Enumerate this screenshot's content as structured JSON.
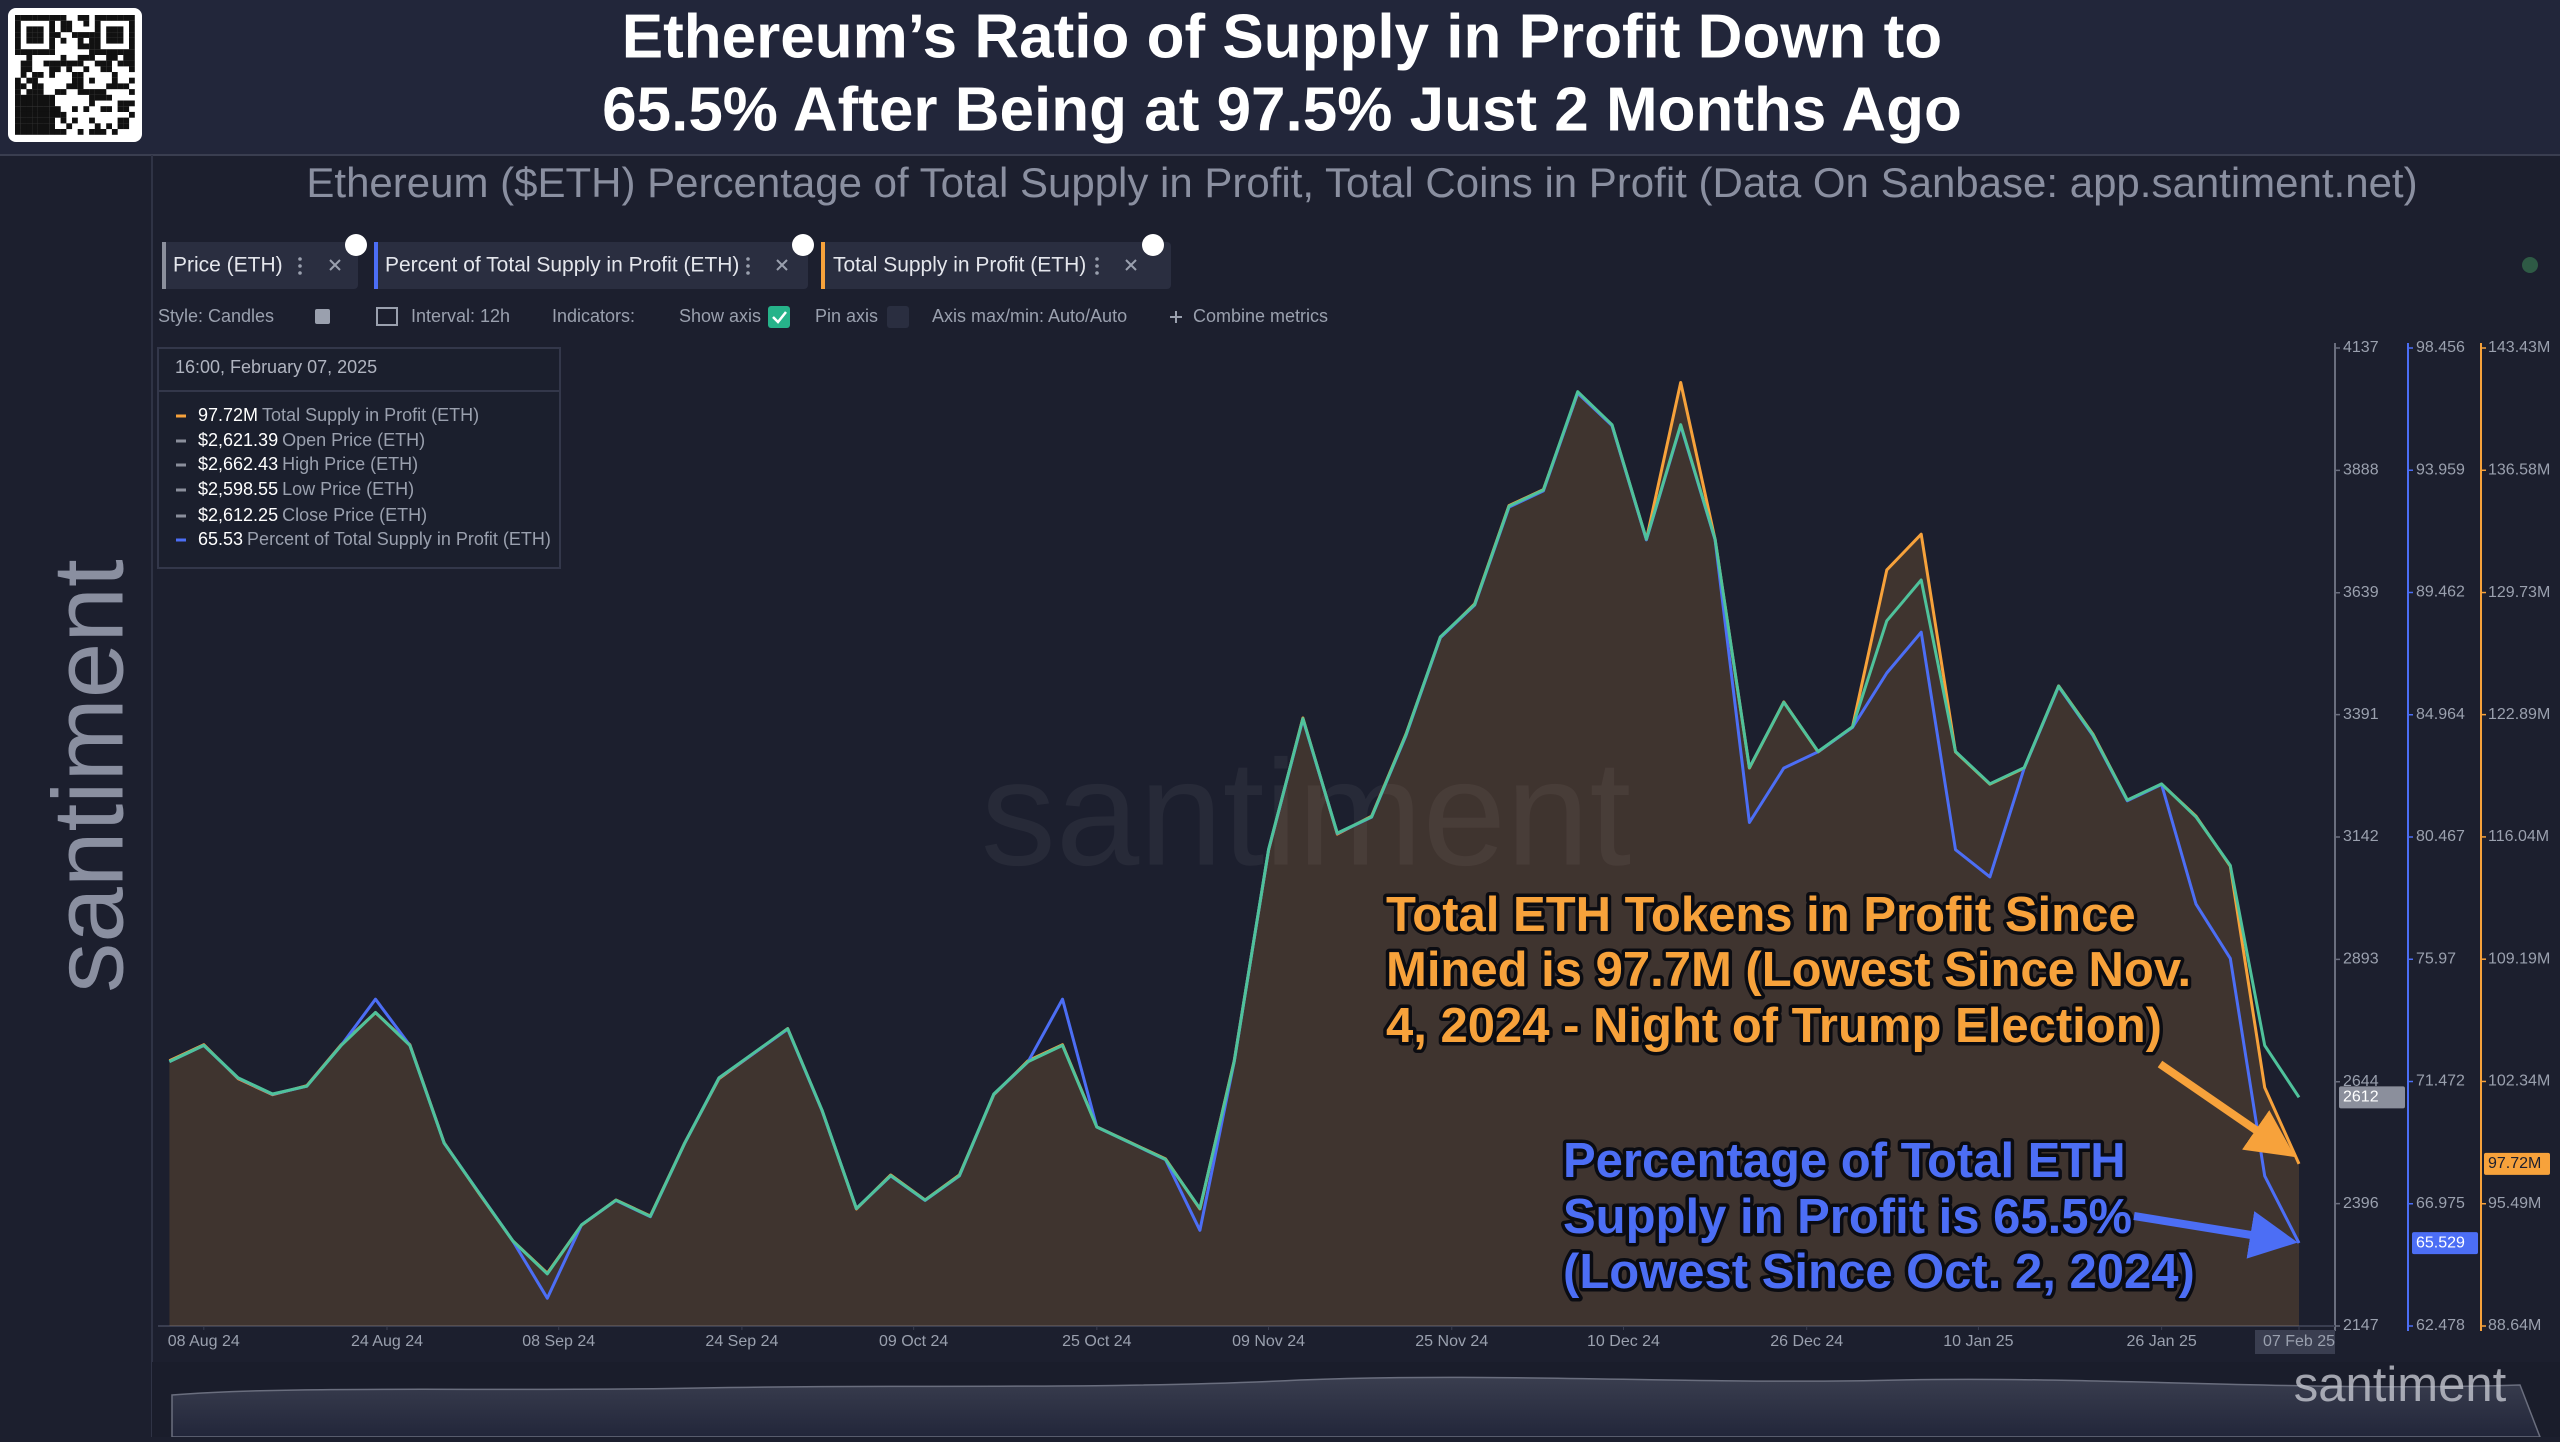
{
  "header": {
    "title_lines": [
      "Ethereum’s Ratio of Supply in Profit Down to",
      "65.5% After Being at 97.5% Just 2 Months Ago"
    ],
    "subtitle": "Ethereum ($ETH) Percentage of Total Supply in Profit, Total Coins in Profit (Data On Sanbase: app.santiment.net)"
  },
  "brand": {
    "side": "santiment",
    "watermark": "santiment",
    "footer": "santiment"
  },
  "tabs": [
    "Price (ETH)",
    "Percent of Total Supply in Profit (ETH)",
    "Total Supply in Profit (ETH)"
  ],
  "toolbar": [
    "Style: Candles",
    "Interval: 12h",
    "Indicators:",
    "Show axis",
    "Pin axis",
    "Axis max/min: Auto/Auto",
    "Combine metrics"
  ],
  "tooltip": {
    "date": "16:00, February 07, 2025",
    "rows": [
      [
        "97.72M",
        "Total Supply in Profit (ETH)"
      ],
      [
        "$2,621.39",
        "Open Price (ETH)"
      ],
      [
        "$2,662.43",
        "High Price (ETH)"
      ],
      [
        "$2,598.55",
        "Low Price (ETH)"
      ],
      [
        "$2,612.25",
        "Close Price (ETH)"
      ],
      [
        "65.53",
        "Percent of Total Supply in Profit (ETH)"
      ]
    ]
  },
  "annotations": [
    {
      "lines": [
        "Total ETH Tokens in Profit Since",
        "Mined is 97.7M (Lowest Since Nov.",
        "4, 2024 - Night of Trump Election)"
      ],
      "color": "#f7a23b"
    },
    {
      "lines": [
        "Percentage of Total ETH",
        "Supply in Profit is 65.5%",
        "(Lowest Since Oct. 2, 2024)"
      ],
      "color": "#4c6ef5"
    }
  ],
  "chart_data": {
    "type": "line",
    "grid": false,
    "x": [
      "2024-08-05",
      "2024-08-08",
      "2024-08-11",
      "2024-08-14",
      "2024-08-17",
      "2024-08-20",
      "2024-08-23",
      "2024-08-26",
      "2024-08-29",
      "2024-09-01",
      "2024-09-04",
      "2024-09-07",
      "2024-09-10",
      "2024-09-13",
      "2024-09-16",
      "2024-09-19",
      "2024-09-22",
      "2024-09-25",
      "2024-09-28",
      "2024-10-01",
      "2024-10-04",
      "2024-10-07",
      "2024-10-10",
      "2024-10-13",
      "2024-10-16",
      "2024-10-19",
      "2024-10-22",
      "2024-10-25",
      "2024-10-28",
      "2024-10-31",
      "2024-11-03",
      "2024-11-06",
      "2024-11-09",
      "2024-11-12",
      "2024-11-15",
      "2024-11-18",
      "2024-11-21",
      "2024-11-24",
      "2024-11-27",
      "2024-11-30",
      "2024-12-03",
      "2024-12-06",
      "2024-12-09",
      "2024-12-12",
      "2024-12-15",
      "2024-12-18",
      "2024-12-21",
      "2024-12-24",
      "2024-12-27",
      "2024-12-30",
      "2025-01-02",
      "2025-01-05",
      "2025-01-08",
      "2025-01-11",
      "2025-01-14",
      "2025-01-17",
      "2025-01-20",
      "2025-01-23",
      "2025-01-26",
      "2025-01-29",
      "2025-02-01",
      "2025-02-04",
      "2025-02-07"
    ],
    "xlim": [
      "2024-08-04",
      "2025-02-07"
    ],
    "xticks": [
      {
        "value": "2024-08-08",
        "label": "08 Aug 24"
      },
      {
        "value": "2024-08-24",
        "label": "24 Aug 24"
      },
      {
        "value": "2024-09-08",
        "label": "08 Sep 24"
      },
      {
        "value": "2024-09-24",
        "label": "24 Sep 24"
      },
      {
        "value": "2024-10-09",
        "label": "09 Oct 24"
      },
      {
        "value": "2024-10-25",
        "label": "25 Oct 24"
      },
      {
        "value": "2024-11-09",
        "label": "09 Nov 24"
      },
      {
        "value": "2024-11-25",
        "label": "25 Nov 24"
      },
      {
        "value": "2024-12-10",
        "label": "10 Dec 24"
      },
      {
        "value": "2024-12-26",
        "label": "26 Dec 24"
      },
      {
        "value": "2025-01-10",
        "label": "10 Jan 25"
      },
      {
        "value": "2025-01-26",
        "label": "26 Jan 25"
      },
      {
        "value": "2025-02-07",
        "label": "07 Feb 25"
      }
    ],
    "ylim": [
      2147,
      4137
    ],
    "yticks": [
      2147,
      2396,
      2644,
      2893,
      3142,
      3391,
      3639,
      3888,
      4137
    ],
    "y2lim": [
      62.478,
      98.456
    ],
    "y2ticks": [
      62.478,
      66.975,
      71.472,
      75.97,
      80.467,
      84.964,
      89.462,
      93.959,
      98.456
    ],
    "y3lim": [
      88.64,
      143.43
    ],
    "y3ticks": [
      {
        "value": 88.64,
        "label": "88.64M"
      },
      {
        "value": 95.49,
        "label": "95.49M"
      },
      {
        "value": 102.34,
        "label": "102.34M"
      },
      {
        "value": 109.19,
        "label": "109.19M"
      },
      {
        "value": 116.04,
        "label": "116.04M"
      },
      {
        "value": 122.89,
        "label": "122.89M"
      },
      {
        "value": 129.73,
        "label": "129.73M"
      },
      {
        "value": 136.58,
        "label": "136.58M"
      },
      {
        "value": 143.43,
        "label": "143.43M"
      }
    ],
    "series": [
      {
        "name": "Price (ETH)",
        "color": "#8b8f9c",
        "line_color": "#4fc29b",
        "axis": "y",
        "last_label": "2612",
        "values": [
          2685,
          2718,
          2652,
          2619,
          2635,
          2718,
          2785,
          2718,
          2519,
          2419,
          2320,
          2253,
          2353,
          2403,
          2370,
          2519,
          2652,
          2702,
          2752,
          2586,
          2386,
          2453,
          2403,
          2453,
          2619,
          2685,
          2718,
          2552,
          2519,
          2486,
          2386,
          2685,
          3117,
          3383,
          3150,
          3183,
          3350,
          3549,
          3615,
          3815,
          3848,
          4048,
          3981,
          3748,
          3981,
          3748,
          3283,
          3416,
          3316,
          3366,
          3582,
          3665,
          3316,
          3250,
          3283,
          3449,
          3350,
          3217,
          3250,
          3183,
          3084,
          2718,
          2612.25
        ]
      },
      {
        "name": "Percent of Total Supply in Profit (ETH)",
        "color": "#4c6ef5",
        "axis": "y2",
        "last_label": "65.529",
        "values": [
          72.2,
          72.8,
          71.6,
          71.0,
          71.3,
          72.8,
          74.5,
          72.8,
          69.2,
          67.4,
          65.6,
          63.5,
          66.2,
          67.1,
          66.5,
          69.2,
          71.6,
          72.5,
          73.4,
          70.4,
          66.8,
          68.0,
          67.1,
          68.0,
          71.0,
          72.2,
          74.5,
          69.8,
          69.2,
          68.6,
          66.0,
          72.2,
          80.0,
          84.8,
          80.6,
          81.2,
          84.2,
          87.8,
          89.0,
          92.6,
          93.2,
          96.8,
          95.6,
          91.4,
          95.6,
          91.4,
          81.0,
          83.0,
          83.6,
          84.5,
          86.5,
          88.0,
          80.0,
          79.0,
          83.0,
          86.0,
          84.2,
          81.8,
          82.4,
          78.0,
          76.0,
          68.0,
          65.529
        ]
      },
      {
        "name": "Total Supply in Profit (ETH)",
        "color": "#f7a23b",
        "axis": "y3",
        "area": true,
        "last_label": "97.72M",
        "values": [
          103.5,
          104.4,
          102.5,
          101.6,
          102.1,
          104.4,
          106.2,
          104.4,
          98.9,
          96.1,
          93.4,
          91.6,
          94.3,
          95.7,
          94.8,
          98.9,
          102.5,
          103.9,
          105.3,
          100.7,
          95.2,
          97.1,
          95.7,
          97.1,
          101.6,
          103.5,
          104.4,
          99.8,
          98.9,
          98.0,
          95.2,
          103.5,
          115.3,
          122.7,
          116.2,
          117.2,
          121.8,
          127.2,
          129.1,
          134.6,
          135.5,
          140.9,
          139.1,
          132.7,
          141.5,
          132.7,
          119.9,
          123.6,
          120.8,
          122.2,
          131.0,
          133.0,
          120.8,
          119.0,
          119.9,
          124.5,
          121.8,
          118.1,
          119.0,
          117.2,
          114.4,
          102.0,
          97.72
        ]
      }
    ]
  }
}
